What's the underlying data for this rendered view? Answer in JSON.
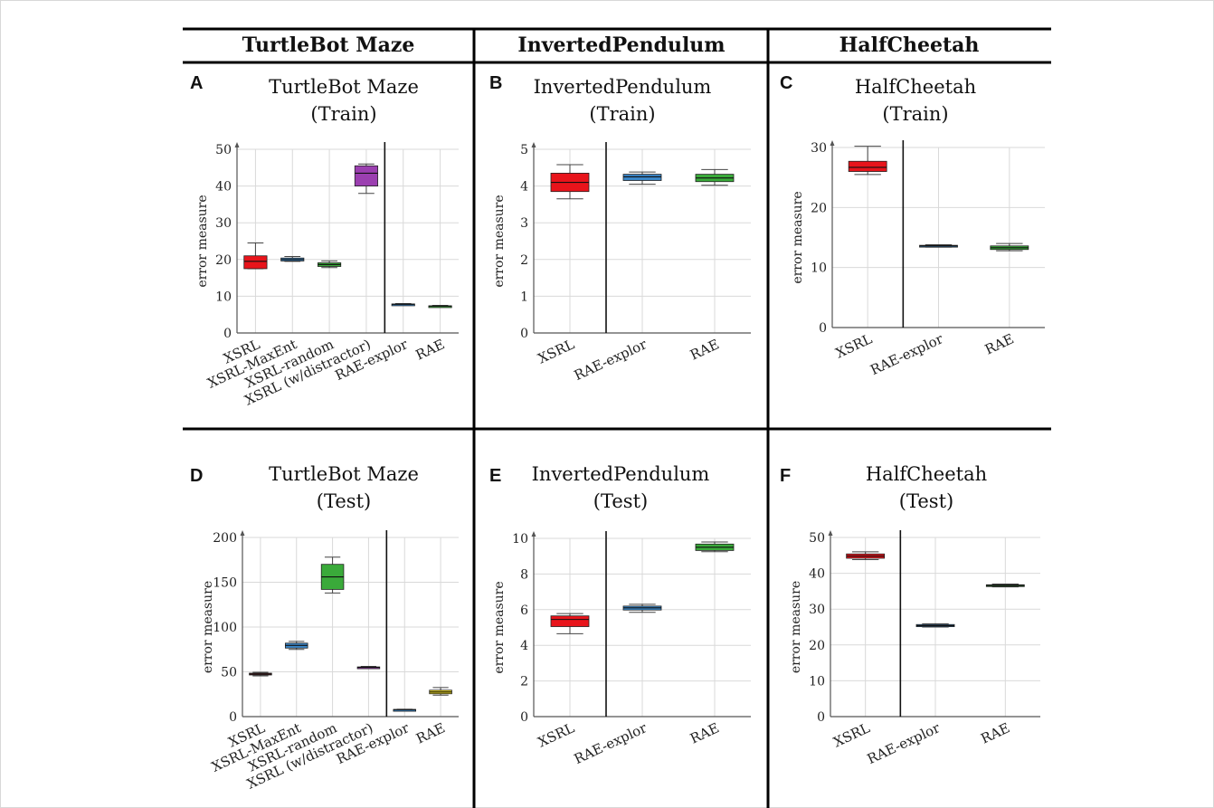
{
  "headers": [
    "TurtleBot Maze",
    "InvertedPendulum",
    "HalfCheetah"
  ],
  "colors": {
    "XSRL": "#e8141b",
    "XSRL-MaxEnt": "#3a86c8",
    "XSRL-random": "#3aaa3a",
    "XSRL (w/distractor)": "#9b3fb0",
    "RAE-explor": "#3a86c8",
    "RAE": "#3aaa3a",
    "RAE-test": "#e8d21a"
  },
  "chart_data": [
    {
      "id": "A",
      "letter": "A",
      "type": "box",
      "title_lines": [
        "TurtleBot Maze",
        "(Train)"
      ],
      "ylabel": "error measure",
      "ylim": [
        0,
        50
      ],
      "yticks": [
        0,
        10,
        20,
        30,
        40,
        50
      ],
      "categories": [
        "XSRL",
        "XSRL-MaxEnt",
        "XSRL-random",
        "XSRL (w/distractor)",
        "RAE-explor",
        "RAE"
      ],
      "separator_after": 4,
      "boxes": [
        {
          "name": "XSRL",
          "color": "#e8141b",
          "whisker_low": 17.5,
          "q1": 17.5,
          "median": 19.5,
          "q3": 21.0,
          "whisker_high": 24.5
        },
        {
          "name": "XSRL-MaxEnt",
          "color": "#3a86c8",
          "whisker_low": 19.5,
          "q1": 19.6,
          "median": 20.0,
          "q3": 20.4,
          "whisker_high": 20.8
        },
        {
          "name": "XSRL-random",
          "color": "#3aaa3a",
          "whisker_low": 17.8,
          "q1": 18.1,
          "median": 18.6,
          "q3": 19.1,
          "whisker_high": 19.6
        },
        {
          "name": "XSRL (w/distractor)",
          "color": "#9b3fb0",
          "whisker_low": 38.0,
          "q1": 40.0,
          "median": 43.5,
          "q3": 45.5,
          "whisker_high": 46.0
        },
        {
          "name": "RAE-explor",
          "color": "#3a86c8",
          "whisker_low": 7.6,
          "q1": 7.7,
          "median": 7.8,
          "q3": 7.9,
          "whisker_high": 8.0
        },
        {
          "name": "RAE",
          "color": "#3aaa3a",
          "whisker_low": 7.1,
          "q1": 7.2,
          "median": 7.3,
          "q3": 7.4,
          "whisker_high": 7.5
        }
      ]
    },
    {
      "id": "B",
      "letter": "B",
      "type": "box",
      "title_lines": [
        "InvertedPendulum",
        "(Train)"
      ],
      "ylabel": "error measure",
      "ylim": [
        0,
        5
      ],
      "yticks": [
        0,
        1,
        2,
        3,
        4,
        5
      ],
      "categories": [
        "XSRL",
        "RAE-explor",
        "RAE"
      ],
      "separator_after": 1,
      "boxes": [
        {
          "name": "XSRL",
          "color": "#e8141b",
          "whisker_low": 3.65,
          "q1": 3.85,
          "median": 4.1,
          "q3": 4.35,
          "whisker_high": 4.58
        },
        {
          "name": "RAE-explor",
          "color": "#3a86c8",
          "whisker_low": 4.05,
          "q1": 4.15,
          "median": 4.25,
          "q3": 4.32,
          "whisker_high": 4.38
        },
        {
          "name": "RAE",
          "color": "#3aaa3a",
          "whisker_low": 4.02,
          "q1": 4.12,
          "median": 4.22,
          "q3": 4.32,
          "whisker_high": 4.45
        }
      ]
    },
    {
      "id": "C",
      "letter": "C",
      "type": "box",
      "title_lines": [
        "HalfCheetah",
        "(Train)"
      ],
      "ylabel": "error measure",
      "ylim": [
        0,
        30
      ],
      "yticks": [
        0,
        10,
        20,
        30
      ],
      "categories": [
        "XSRL",
        "RAE-explor",
        "RAE"
      ],
      "separator_after": 1,
      "boxes": [
        {
          "name": "XSRL",
          "color": "#e8141b",
          "whisker_low": 25.5,
          "q1": 26.0,
          "median": 26.7,
          "q3": 27.7,
          "whisker_high": 30.2
        },
        {
          "name": "RAE-explor",
          "color": "#3a86c8",
          "whisker_low": 13.4,
          "q1": 13.5,
          "median": 13.6,
          "q3": 13.7,
          "whisker_high": 13.8
        },
        {
          "name": "RAE",
          "color": "#3aaa3a",
          "whisker_low": 12.8,
          "q1": 13.0,
          "median": 13.3,
          "q3": 13.6,
          "whisker_high": 14.0
        }
      ]
    },
    {
      "id": "D",
      "letter": "D",
      "type": "box",
      "title_lines": [
        "TurtleBot Maze",
        "(Test)"
      ],
      "ylabel": "error measure",
      "ylim": [
        0,
        200
      ],
      "yticks": [
        0,
        50,
        100,
        150,
        200
      ],
      "categories": [
        "XSRL",
        "XSRL-MaxEnt",
        "XSRL-random",
        "XSRL (w/distractor)",
        "RAE-explor",
        "RAE"
      ],
      "separator_after": 4,
      "boxes": [
        {
          "name": "XSRL",
          "color": "#e8141b",
          "whisker_low": 45.5,
          "q1": 46.5,
          "median": 47.5,
          "q3": 48.5,
          "whisker_high": 49.5
        },
        {
          "name": "XSRL-MaxEnt",
          "color": "#3a86c8",
          "whisker_low": 75.0,
          "q1": 76.5,
          "median": 79.5,
          "q3": 82.0,
          "whisker_high": 84.0
        },
        {
          "name": "XSRL-random",
          "color": "#3aaa3a",
          "whisker_low": 138.0,
          "q1": 142.0,
          "median": 156.0,
          "q3": 170.0,
          "whisker_high": 178.0
        },
        {
          "name": "XSRL (w/distractor)",
          "color": "#9b3fb0",
          "whisker_low": 54.0,
          "q1": 54.5,
          "median": 55.0,
          "q3": 55.5,
          "whisker_high": 56.0
        },
        {
          "name": "RAE-explor",
          "color": "#3a86c8",
          "whisker_low": 7.5,
          "q1": 7.6,
          "median": 7.8,
          "q3": 8.0,
          "whisker_high": 8.2
        },
        {
          "name": "RAE",
          "color": "#e8d21a",
          "whisker_low": 24.0,
          "q1": 25.5,
          "median": 27.5,
          "q3": 29.5,
          "whisker_high": 32.5
        }
      ]
    },
    {
      "id": "E",
      "letter": "E",
      "type": "box",
      "title_lines": [
        "InvertedPendulum",
        "(Test)"
      ],
      "ylabel": "error measure",
      "ylim": [
        0,
        10
      ],
      "yticks": [
        0,
        2,
        4,
        6,
        8,
        10
      ],
      "categories": [
        "XSRL",
        "RAE-explor",
        "RAE"
      ],
      "separator_after": 1,
      "boxes": [
        {
          "name": "XSRL",
          "color": "#e8141b",
          "whisker_low": 4.65,
          "q1": 5.05,
          "median": 5.45,
          "q3": 5.65,
          "whisker_high": 5.78
        },
        {
          "name": "RAE-explor",
          "color": "#3a86c8",
          "whisker_low": 5.85,
          "q1": 5.98,
          "median": 6.1,
          "q3": 6.2,
          "whisker_high": 6.3
        },
        {
          "name": "RAE",
          "color": "#3aaa3a",
          "whisker_low": 9.25,
          "q1": 9.32,
          "median": 9.5,
          "q3": 9.68,
          "whisker_high": 9.8
        }
      ]
    },
    {
      "id": "F",
      "letter": "F",
      "type": "box",
      "title_lines": [
        "HalfCheetah",
        "(Test)"
      ],
      "ylabel": "error measure",
      "ylim": [
        0,
        50
      ],
      "yticks": [
        0,
        10,
        20,
        30,
        40,
        50
      ],
      "categories": [
        "XSRL",
        "RAE-explor",
        "RAE"
      ],
      "separator_after": 1,
      "boxes": [
        {
          "name": "XSRL",
          "color": "#e8141b",
          "whisker_low": 43.8,
          "q1": 44.2,
          "median": 44.8,
          "q3": 45.4,
          "whisker_high": 46.0
        },
        {
          "name": "RAE-explor",
          "color": "#3a86c8",
          "whisker_low": 25.0,
          "q1": 25.1,
          "median": 25.4,
          "q3": 25.7,
          "whisker_high": 25.9
        },
        {
          "name": "RAE",
          "color": "#3aaa3a",
          "whisker_low": 36.2,
          "q1": 36.4,
          "median": 36.6,
          "q3": 36.8,
          "whisker_high": 37.0
        }
      ]
    }
  ]
}
